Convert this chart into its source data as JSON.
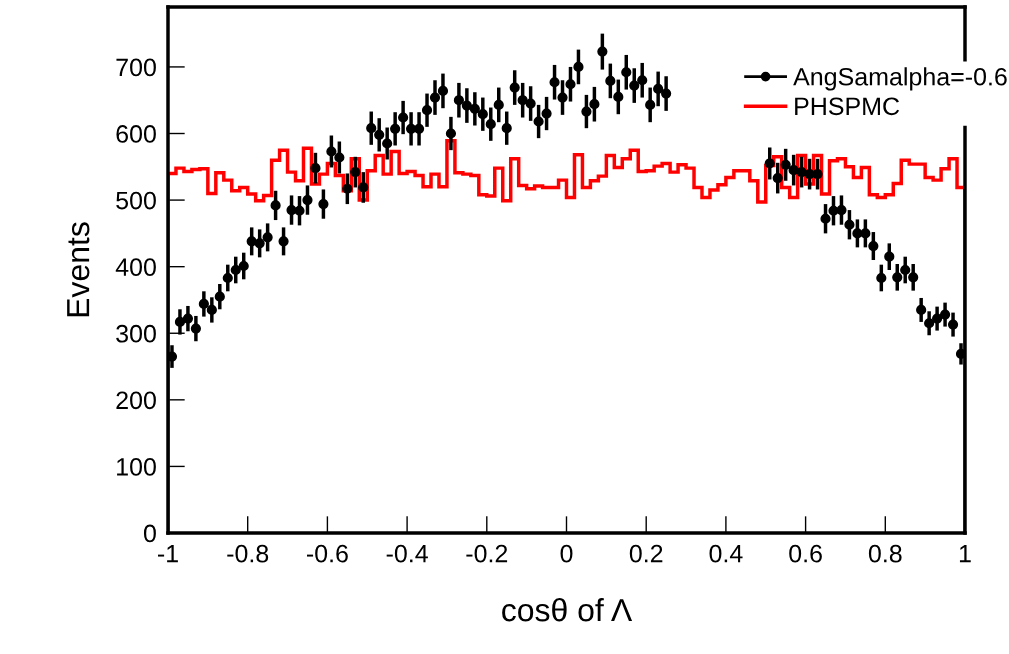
{
  "chart_data": {
    "type": "scatter",
    "xlabel": "cosθ of Λ",
    "ylabel": "Events",
    "bins": [
      -1,
      -0.98,
      -0.96,
      -0.94,
      -0.92,
      -0.9,
      -0.88,
      -0.86,
      -0.84,
      -0.82,
      -0.8,
      -0.78,
      -0.76,
      -0.74,
      -0.72,
      -0.7,
      -0.68,
      -0.66,
      -0.64,
      -0.62,
      -0.6,
      -0.58,
      -0.56,
      -0.54,
      -0.52,
      -0.5,
      -0.48,
      -0.46,
      -0.44,
      -0.42,
      -0.4,
      -0.38,
      -0.36,
      -0.34,
      -0.32,
      -0.3,
      -0.28,
      -0.26,
      -0.24,
      -0.22,
      -0.2,
      -0.18,
      -0.16,
      -0.14,
      -0.12,
      -0.1,
      -0.08,
      -0.06,
      -0.04,
      -0.02,
      0,
      0.02,
      0.04,
      0.06,
      0.08,
      0.1,
      0.12,
      0.14,
      0.16,
      0.18,
      0.2,
      0.22,
      0.24,
      0.26,
      0.28,
      0.3,
      0.32,
      0.34,
      0.36,
      0.38,
      0.4,
      0.42,
      0.44,
      0.46,
      0.48,
      0.5,
      0.52,
      0.54,
      0.56,
      0.58,
      0.6,
      0.62,
      0.64,
      0.66,
      0.68,
      0.7,
      0.72,
      0.74,
      0.76,
      0.78,
      0.8,
      0.82,
      0.84,
      0.86,
      0.88,
      0.9,
      0.92,
      0.94,
      0.96,
      0.98,
      1
    ],
    "series": [
      {
        "name": "AngSamalpha=-0.6",
        "color": "#000000",
        "marker": "circle",
        "x": [
          -0.99,
          -0.97,
          -0.95,
          -0.93,
          -0.91,
          -0.89,
          -0.87,
          -0.85,
          -0.83,
          -0.81,
          -0.79,
          -0.77,
          -0.75,
          -0.73,
          -0.71,
          -0.69,
          -0.67,
          -0.65,
          -0.63,
          -0.61,
          -0.59,
          -0.57,
          -0.55,
          -0.53,
          -0.51,
          -0.49,
          -0.47,
          -0.45,
          -0.43,
          -0.41,
          -0.39,
          -0.37,
          -0.35,
          -0.33,
          -0.31,
          -0.29,
          -0.27,
          -0.25,
          -0.23,
          -0.21,
          -0.19,
          -0.17,
          -0.15,
          -0.13,
          -0.11,
          -0.09,
          -0.07,
          -0.05,
          -0.03,
          -0.01,
          0.01,
          0.03,
          0.05,
          0.07,
          0.09,
          0.11,
          0.13,
          0.15,
          0.17,
          0.19,
          0.21,
          0.23,
          0.25,
          0.27,
          0.29,
          0.31,
          0.33,
          0.35,
          0.37,
          0.39,
          0.41,
          0.43,
          0.45,
          0.47,
          0.49,
          0.51,
          0.53,
          0.55,
          0.57,
          0.59,
          0.61,
          0.63,
          0.65,
          0.67,
          0.69,
          0.71,
          0.73,
          0.75,
          0.77,
          0.79,
          0.81,
          0.83,
          0.85,
          0.87,
          0.89,
          0.91,
          0.93,
          0.95,
          0.97,
          0.99
        ],
        "values": [
          265,
          317,
          322,
          307,
          344,
          335,
          355,
          383,
          395,
          401,
          438,
          435,
          444,
          492,
          438,
          485,
          484,
          500,
          548,
          494,
          573,
          564,
          517,
          542,
          519,
          608,
          598,
          585,
          607,
          624,
          607,
          607,
          635,
          654,
          664,
          600,
          650,
          642,
          637,
          629,
          614,
          643,
          608,
          669,
          650,
          645,
          618,
          630,
          677,
          654,
          674,
          700,
          633,
          644,
          723,
          679,
          655,
          692,
          672,
          680,
          643,
          667,
          660,
          null,
          null,
          null,
          null,
          null,
          null,
          null,
          null,
          null,
          null,
          null,
          null,
          555,
          533,
          553,
          545,
          542,
          539,
          539,
          472,
          484,
          485,
          463,
          450,
          450,
          431,
          383,
          415,
          384,
          395,
          384,
          335,
          315,
          322,
          328,
          313,
          269
        ],
        "errors": [
          17,
          19,
          19,
          19,
          19,
          19,
          19,
          20,
          20,
          20,
          21,
          21,
          21,
          22,
          21,
          22,
          22,
          22,
          23,
          22,
          24,
          24,
          23,
          23,
          23,
          25,
          25,
          24,
          25,
          25,
          25,
          25,
          25,
          26,
          26,
          25,
          26,
          26,
          25,
          25,
          25,
          26,
          25,
          26,
          26,
          26,
          25,
          25,
          26,
          26,
          26,
          26,
          25,
          26,
          27,
          26,
          26,
          26,
          26,
          26,
          26,
          26,
          26,
          null,
          null,
          null,
          null,
          null,
          null,
          null,
          null,
          null,
          null,
          null,
          null,
          24,
          23,
          24,
          23,
          23,
          23,
          23,
          22,
          22,
          22,
          22,
          21,
          21,
          21,
          20,
          20,
          20,
          20,
          20,
          18,
          18,
          18,
          18,
          18,
          16
        ]
      },
      {
        "name": "PHSPMC",
        "type": "histogram",
        "color": "#ff0000",
        "values": [
          540,
          548,
          543,
          546,
          547,
          510,
          541,
          530,
          514,
          519,
          509,
          499,
          507,
          560,
          575,
          542,
          529,
          578,
          524,
          539,
          555,
          537,
          514,
          562,
          500,
          544,
          567,
          539,
          573,
          540,
          543,
          537,
          520,
          539,
          520,
          589,
          541,
          539,
          537,
          508,
          506,
          548,
          499,
          562,
          522,
          517,
          521,
          519,
          519,
          530,
          504,
          568,
          519,
          529,
          536,
          567,
          549,
          562,
          575,
          543,
          544,
          551,
          555,
          542,
          553,
          548,
          519,
          504,
          515,
          523,
          534,
          544,
          544,
          529,
          497,
          552,
          565,
          519,
          504,
          567,
          524,
          567,
          509,
          559,
          562,
          550,
          534,
          549,
          508,
          504,
          508,
          525,
          560,
          554,
          554,
          534,
          530,
          547,
          562,
          519
        ]
      }
    ],
    "xlim": [
      -1,
      1
    ],
    "xticks": [
      -1,
      -0.8,
      -0.6,
      -0.4,
      -0.2,
      0,
      0.2,
      0.4,
      0.6,
      0.8,
      1
    ],
    "ylim": [
      0,
      790
    ],
    "yticks": [
      0,
      100,
      200,
      300,
      400,
      500,
      600,
      700
    ],
    "legend": "top right",
    "grid": false
  }
}
